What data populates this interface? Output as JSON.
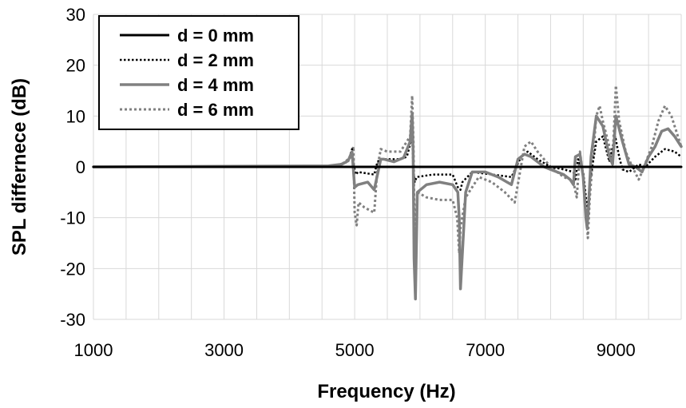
{
  "chart_data": {
    "type": "line",
    "title": "",
    "xlabel": "Frequency (Hz)",
    "ylabel": "SPL differnece (dB)",
    "xlim": [
      1000,
      10000
    ],
    "ylim": [
      -30,
      30
    ],
    "x_tick_labels": [
      "1000",
      "3000",
      "5000",
      "7000",
      "9000"
    ],
    "y_tick_labels": [
      "30",
      "20",
      "10",
      "0",
      "-10",
      "-20",
      "-30"
    ],
    "x_ticks": [
      1000,
      3000,
      5000,
      7000,
      9000
    ],
    "y_ticks": [
      30,
      20,
      10,
      0,
      -10,
      -20,
      -30
    ],
    "x_minor_step": 500,
    "y_minor_step": 10,
    "grid": true,
    "legend_position": "top-left",
    "series": [
      {
        "name": "d = 0 mm",
        "color": "#000000",
        "style": "solid",
        "x": [
          1000,
          10000
        ],
        "y": [
          0,
          0
        ]
      },
      {
        "name": "d = 2 mm",
        "color": "#000000",
        "style": "dotted",
        "x": [
          1000,
          4700,
          4900,
          4960,
          4980,
          5020,
          5050,
          5300,
          5350,
          5400,
          5700,
          5800,
          5880,
          5900,
          5920,
          5950,
          6200,
          6500,
          6580,
          6620,
          6650,
          6800,
          7400,
          7550,
          7650,
          7800,
          8000,
          8200,
          8350,
          8380,
          8420,
          8500,
          8550,
          8570,
          8600,
          8700,
          8800,
          8900,
          8990,
          9050,
          9100,
          9200,
          9300,
          9350,
          9450,
          9600,
          9750,
          9900,
          10000
        ],
        "y": [
          0,
          0.2,
          1,
          3.5,
          0.5,
          -1.5,
          -1,
          -1.5,
          1,
          1.5,
          1.5,
          2,
          6,
          -1,
          -3,
          -2,
          -1.5,
          -1.5,
          -4,
          -4.5,
          -3,
          -1,
          -2,
          2,
          3,
          1.5,
          0,
          -0.5,
          -1,
          -2.5,
          1.5,
          -1,
          -7,
          -8,
          -3,
          5,
          6,
          1,
          6,
          2,
          -0.5,
          -1,
          0,
          0.5,
          0,
          2,
          3.5,
          3,
          2
        ]
      },
      {
        "name": "d = 4 mm",
        "color": "#808080",
        "style": "solid",
        "x": [
          1000,
          4600,
          4800,
          4900,
          4960,
          5000,
          5050,
          5200,
          5300,
          5400,
          5450,
          5600,
          5750,
          5850,
          5880,
          5895,
          5910,
          5930,
          5960,
          6100,
          6300,
          6500,
          6580,
          6600,
          6620,
          6700,
          6800,
          7000,
          7200,
          7400,
          7500,
          7600,
          7700,
          7800,
          7900,
          8000,
          8100,
          8200,
          8300,
          8350,
          8380,
          8450,
          8500,
          8540,
          8560,
          8580,
          8620,
          8700,
          8800,
          8850,
          8900,
          8950,
          9000,
          9100,
          9200,
          9300,
          9400,
          9500,
          9600,
          9700,
          9800,
          9900,
          10000
        ],
        "y": [
          0,
          0.2,
          0.5,
          1.2,
          3,
          -4,
          -3.5,
          -3,
          -4.5,
          1.5,
          1.5,
          1,
          1.8,
          5,
          10.5,
          3,
          -18,
          -26,
          -5,
          -3.5,
          -3,
          -3.5,
          -5,
          -10,
          -24,
          -5,
          -1,
          -1,
          -2,
          -3.5,
          1.5,
          2.5,
          2,
          1,
          0,
          -0.5,
          -1,
          -1.5,
          -2.5,
          -3.5,
          2,
          2.5,
          -2,
          -10,
          -12,
          -8,
          2,
          10,
          8,
          5,
          2,
          0.5,
          10,
          5,
          0.5,
          0,
          -1,
          2,
          4,
          7,
          7.5,
          6,
          4
        ]
      },
      {
        "name": "d = 6 mm",
        "color": "#808080",
        "style": "dotted",
        "x": [
          1000,
          4500,
          4800,
          4950,
          4980,
          5000,
          5030,
          5060,
          5150,
          5300,
          5350,
          5400,
          5500,
          5700,
          5850,
          5880,
          5900,
          5920,
          5960,
          6100,
          6300,
          6500,
          6570,
          6600,
          6620,
          6700,
          6900,
          7100,
          7300,
          7450,
          7600,
          7700,
          7800,
          8000,
          8100,
          8200,
          8300,
          8350,
          8400,
          8450,
          8500,
          8550,
          8570,
          8600,
          8700,
          8750,
          8800,
          8880,
          8950,
          9000,
          9050,
          9150,
          9250,
          9350,
          9400,
          9550,
          9650,
          9750,
          9850,
          9950,
          10000
        ],
        "y": [
          0,
          0,
          0.5,
          2,
          4,
          -9,
          -11.5,
          -7,
          -8,
          -9,
          0,
          3.5,
          3,
          3,
          6,
          14,
          5,
          -15,
          -5,
          -6,
          -6.5,
          -6.5,
          -10,
          -17,
          -12,
          -6,
          -2,
          -3,
          -5,
          -7,
          4,
          5,
          3,
          0,
          -1,
          -2,
          -2.5,
          -3,
          -6,
          3,
          -2,
          -10,
          -14,
          -6,
          10,
          12,
          9,
          5,
          1.5,
          16,
          9,
          3,
          0,
          -2.5,
          -1,
          4,
          9,
          12,
          10,
          6,
          4
        ]
      }
    ]
  }
}
